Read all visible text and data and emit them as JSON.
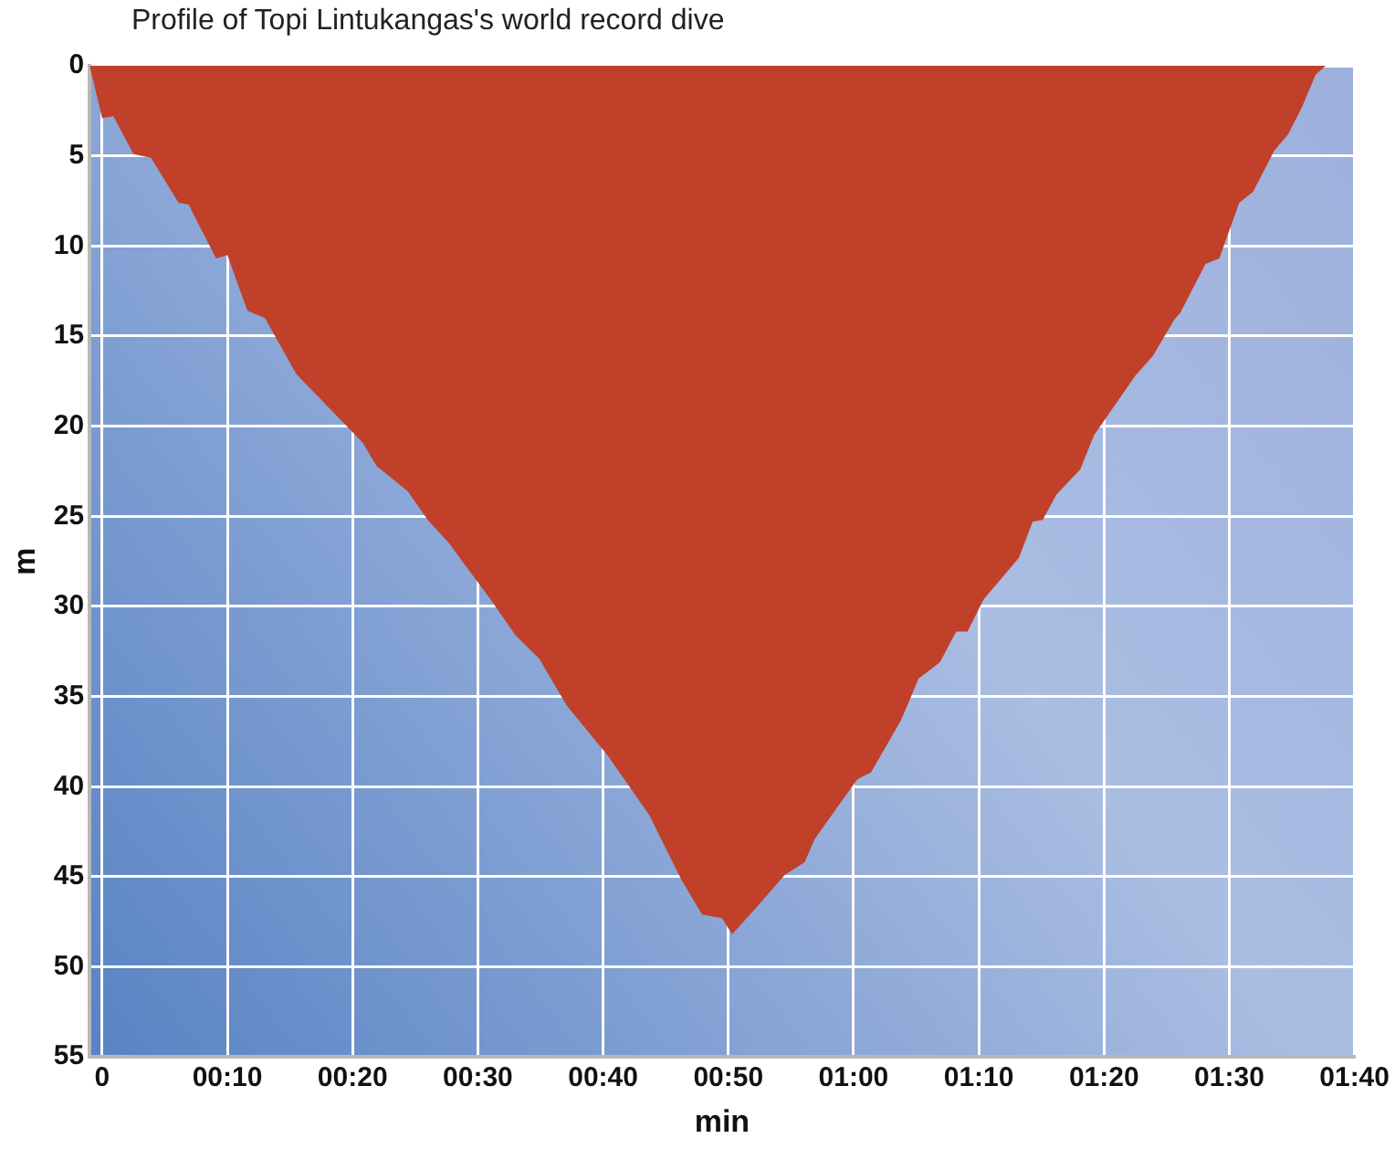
{
  "chart_data": {
    "type": "area",
    "title": "Profile of Topi Lintukangas's world record dive",
    "xlabel": "min",
    "ylabel": "m",
    "x": [
      -1,
      0,
      0.9,
      2.5,
      3.9,
      6.1,
      6.9,
      9.1,
      10,
      11.6,
      13,
      15.5,
      19.4,
      20.8,
      21.9,
      24.4,
      26,
      27.7,
      31,
      33,
      34.9,
      37.1,
      40.4,
      43.7,
      46.2,
      47.9,
      49.5,
      50.3,
      52.5,
      54.5,
      56.1,
      56.9,
      60.3,
      61.4,
      63.8,
      65.2,
      66.9,
      68.2,
      69.1,
      70.4,
      73.2,
      74.3,
      75.1,
      76.2,
      78.1,
      79.2,
      82.5,
      83.9,
      85.6,
      86.1,
      88.1,
      89.2,
      90.8,
      91.9,
      93.6,
      94.7,
      95.8,
      96.9,
      97.7
    ],
    "series": [
      {
        "color": "#c0402a",
        "values": [
          0,
          2.9,
          2.8,
          4.9,
          5.1,
          7.6,
          7.7,
          10.7,
          10.5,
          13.6,
          14,
          17.1,
          19.9,
          20.9,
          22.2,
          23.6,
          25.2,
          26.5,
          29.6,
          31.6,
          32.9,
          35.5,
          38.3,
          41.6,
          45.1,
          47.1,
          47.3,
          48.2,
          46.5,
          44.9,
          44.2,
          42.9,
          39.6,
          39.2,
          36.3,
          34,
          33.1,
          31.4,
          31.4,
          29.6,
          27.3,
          25.3,
          25.2,
          23.8,
          22.4,
          20.5,
          17.2,
          16.1,
          14.1,
          13.7,
          11,
          10.7,
          7.6,
          7,
          4.7,
          3.8,
          2.3,
          0.5,
          0
        ]
      }
    ],
    "xlim": [
      -1,
      100
    ],
    "xticks": [
      {
        "value": 0,
        "label": "0"
      },
      {
        "value": 10,
        "label": "00:10"
      },
      {
        "value": 20,
        "label": "00:20"
      },
      {
        "value": 30,
        "label": "00:30"
      },
      {
        "value": 40,
        "label": "00:40"
      },
      {
        "value": 50,
        "label": "00:50"
      },
      {
        "value": 60,
        "label": "01:00"
      },
      {
        "value": 70,
        "label": "01:10"
      },
      {
        "value": 80,
        "label": "01:20"
      },
      {
        "value": 90,
        "label": "01:30"
      },
      {
        "value": 100,
        "label": "01:40"
      }
    ],
    "ylim": [
      55,
      0
    ],
    "yticks": [
      0,
      5,
      10,
      15,
      20,
      25,
      30,
      35,
      40,
      45,
      50,
      55
    ],
    "grid": true,
    "legend": false
  }
}
